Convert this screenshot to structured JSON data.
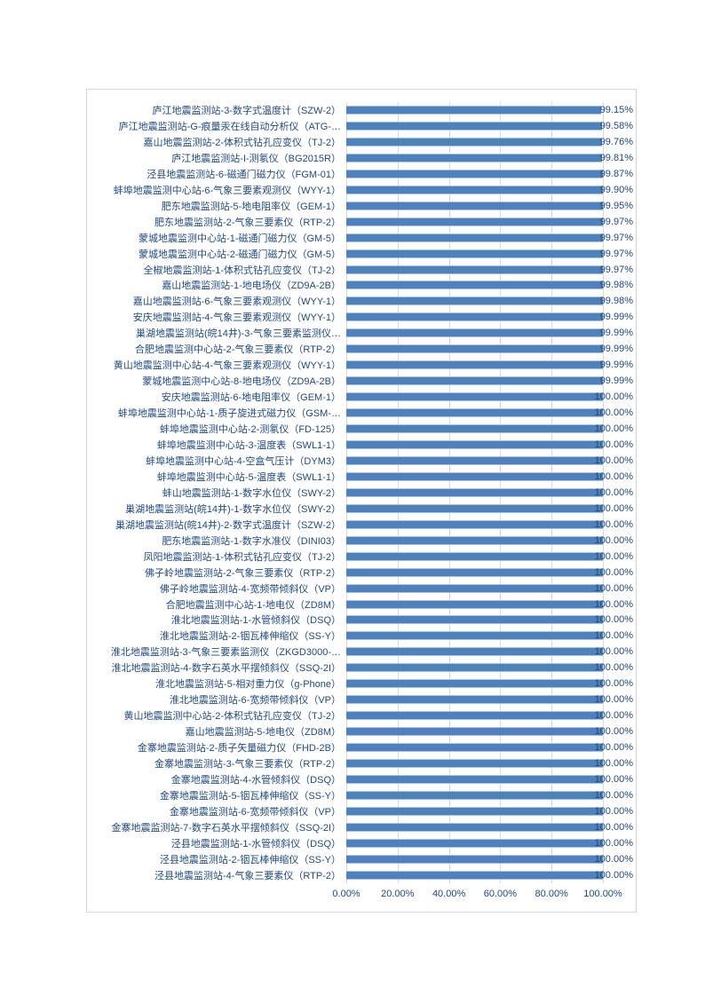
{
  "chart_data": {
    "type": "bar",
    "orientation": "horizontal",
    "title": "",
    "xlabel": "",
    "ylabel": "",
    "xlim": [
      0,
      100
    ],
    "x_ticks": [
      "0.00%",
      "20.00%",
      "40.00%",
      "60.00%",
      "80.00%",
      "100.00%"
    ],
    "grid": true,
    "legend": false,
    "bar_color": "#4F81BD",
    "bar_border_color": "#A9C2DF",
    "text_color": "#1F497D",
    "gridline_color": "#D9D9D9",
    "categories": [
      "庐江地震监测站-3-数字式温度计（SZW-2）",
      "庐江地震监测站-G-痕量汞在线自动分析仪（ATG-…",
      "嘉山地震监测站-2-体积式钻孔应变仪（TJ-2）",
      "庐江地震监测站-I-测氡仪（BG2015R）",
      "泾县地震监测站-6-磁通门磁力仪（FGM-01）",
      "蚌埠地震监测中心站-6-气象三要素观测仪（WYY-1）",
      "肥东地震监测站-5-地电阻率仪（GEM-1）",
      "肥东地震监测站-2-气象三要素仪（RTP-2）",
      "蒙城地震监测中心站-1-磁通门磁力仪（GM-5）",
      "蒙城地震监测中心站-2-磁通门磁力仪（GM-5）",
      "全椒地震监测站-1-体积式钻孔应变仪（TJ-2）",
      "嘉山地震监测站-1-地电场仪（ZD9A-2B）",
      "嘉山地震监测站-6-气象三要素观测仪（WYY-1）",
      "安庆地震监测站-4-气象三要素观测仪（WYY-1）",
      "巢湖地震监测站(皖14井)-3-气象三要素监测仪…",
      "合肥地震监测中心站-2-气象三要素仪（RTP-2）",
      "黄山地震监测中心站-4-气象三要素观测仪（WYY-1）",
      "蒙城地震监测中心站-8-地电场仪（ZD9A-2B）",
      "安庆地震监测站-6-地电阻率仪（GEM-1）",
      "蚌埠地震监测中心站-1-质子旋进式磁力仪（GSM-…",
      "蚌埠地震监测中心站-2-测氡仪（FD-125）",
      "蚌埠地震监测中心站-3-温度表（SWL1-1）",
      "蚌埠地震监测中心站-4-空盒气压计（DYM3）",
      "蚌埠地震监测中心站-5-温度表（SWL1-1）",
      "蚌山地震监测站-1-数字水位仪（SWY-2）",
      "巢湖地震监测站(皖14井)-1-数字水位仪（SWY-2）",
      "巢湖地震监测站(皖14井)-2-数字式温度计（SZW-2）",
      "肥东地震监测站-1-数字水准仪（DINI03）",
      "凤阳地震监测站-1-体积式钻孔应变仪（TJ-2）",
      "佛子岭地震监测站-2-气象三要素仪（RTP-2）",
      "佛子岭地震监测站-4-宽频带倾斜仪（VP）",
      "合肥地震监测中心站-1-地电仪（ZD8M）",
      "淮北地震监测站-1-水管倾斜仪（DSQ）",
      "淮北地震监测站-2-铟瓦棒伸缩仪（SS-Y）",
      "淮北地震监测站-3-气象三要素监测仪（ZKGD3000-…",
      "淮北地震监测站-4-数字石英水平摆倾斜仪（SSQ-2I）",
      "淮北地震监测站-5-相对重力仪（g-Phone）",
      "淮北地震监测站-6-宽频带倾斜仪（VP）",
      "黄山地震监测中心站-2-体积式钻孔应变仪（TJ-2）",
      "嘉山地震监测站-5-地电仪（ZD8M）",
      "金寨地震监测站-2-质子矢量磁力仪（FHD-2B）",
      "金寨地震监测站-3-气象三要素仪（RTP-2）",
      "金寨地震监测站-4-水管倾斜仪（DSQ）",
      "金寨地震监测站-5-铟瓦棒伸缩仪（SS-Y）",
      "金寨地震监测站-6-宽频带倾斜仪（VP）",
      "金寨地震监测站-7-数字石英水平摆倾斜仪（SSQ-2I）",
      "泾县地震监测站-1-水管倾斜仪（DSQ）",
      "泾县地震监测站-2-铟瓦棒伸缩仪（SS-Y）",
      "泾县地震监测站-4-气象三要素仪（RTP-2）"
    ],
    "values": [
      99.15,
      99.58,
      99.76,
      99.81,
      99.87,
      99.9,
      99.95,
      99.97,
      99.97,
      99.97,
      99.97,
      99.98,
      99.98,
      99.99,
      99.99,
      99.99,
      99.99,
      99.99,
      100.0,
      100.0,
      100.0,
      100.0,
      100.0,
      100.0,
      100.0,
      100.0,
      100.0,
      100.0,
      100.0,
      100.0,
      100.0,
      100.0,
      100.0,
      100.0,
      100.0,
      100.0,
      100.0,
      100.0,
      100.0,
      100.0,
      100.0,
      100.0,
      100.0,
      100.0,
      100.0,
      100.0,
      100.0,
      100.0,
      100.0
    ],
    "value_labels": [
      "99.15%",
      "99.58%",
      "99.76%",
      "99.81%",
      "99.87%",
      "99.90%",
      "99.95%",
      "99.97%",
      "99.97%",
      "99.97%",
      "99.97%",
      "99.98%",
      "99.98%",
      "99.99%",
      "99.99%",
      "99.99%",
      "99.99%",
      "99.99%",
      "100.00%",
      "100.00%",
      "100.00%",
      "100.00%",
      "100.00%",
      "100.00%",
      "100.00%",
      "100.00%",
      "100.00%",
      "100.00%",
      "100.00%",
      "100.00%",
      "100.00%",
      "100.00%",
      "100.00%",
      "100.00%",
      "100.00%",
      "100.00%",
      "100.00%",
      "100.00%",
      "100.00%",
      "100.00%",
      "100.00%",
      "100.00%",
      "100.00%",
      "100.00%",
      "100.00%",
      "100.00%",
      "100.00%",
      "100.00%",
      "100.00%"
    ]
  }
}
